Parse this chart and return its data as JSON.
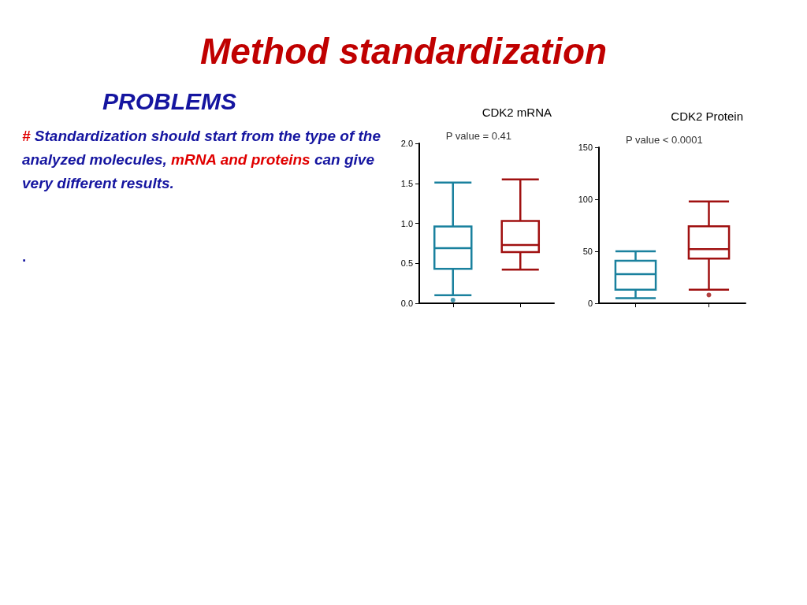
{
  "chart_data": [
    {
      "type": "other",
      "title": "Method standardization",
      "subtitle": "PROBLEMS",
      "annotations": [
        "#",
        "Standardization should start from the type of the analyzed molecules,",
        "mRNA and proteins",
        "can give very different results.",
        "."
      ]
    },
    {
      "type": "box",
      "title": "CDK2 mRNA",
      "annotations": [
        "P value = 0.41"
      ],
      "categories": [
        null,
        null
      ],
      "colors": [
        "#1a819e",
        "#a01010"
      ],
      "boxes": [
        {
          "low": 0.1,
          "q1": 0.43,
          "median": 0.69,
          "q3": 0.96,
          "high": 1.51,
          "outliers": [
            0.04
          ]
        },
        {
          "low": 0.42,
          "q1": 0.64,
          "median": 0.73,
          "q3": 1.03,
          "high": 1.55
        }
      ],
      "ylim": [
        0,
        2
      ],
      "yticks": [
        {
          "value": 0,
          "label": "0.0"
        },
        {
          "value": 0.5,
          "label": "0.5"
        },
        {
          "value": 1,
          "label": "1.0"
        },
        {
          "value": 1.5,
          "label": "1.5"
        },
        {
          "value": 2,
          "label": "2.0"
        }
      ],
      "grid": false
    },
    {
      "type": "box",
      "title": "CDK2 Protein",
      "annotations": [
        "P value < 0.0001"
      ],
      "categories": [
        null,
        null
      ],
      "colors": [
        "#1a819e",
        "#a01010"
      ],
      "boxes": [
        {
          "low": 5,
          "q1": 13,
          "median": 28,
          "q3": 41,
          "high": 50
        },
        {
          "low": 13,
          "q1": 43,
          "median": 52,
          "q3": 74,
          "high": 98,
          "outliers": [
            8
          ]
        }
      ],
      "ylim": [
        0,
        150
      ],
      "yticks": [
        0,
        50,
        100,
        150
      ],
      "grid": false
    }
  ]
}
